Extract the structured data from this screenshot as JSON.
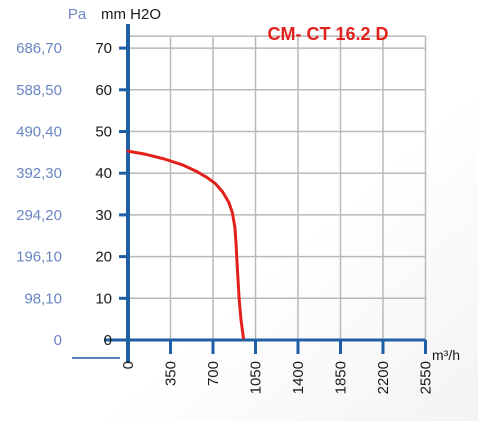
{
  "chart_data": {
    "type": "line",
    "title": "CM- CT 16.2 D",
    "left_axis_unit": "Pa",
    "ylabel": "mm H2O",
    "xlabel": "m³/h",
    "x_ticks": [
      "0",
      "350",
      "700",
      "1050",
      "1400",
      "1850",
      "2200",
      "2550"
    ],
    "y_ticks": [
      "0",
      "10",
      "20",
      "30",
      "40",
      "50",
      "60",
      "70"
    ],
    "pa_ticks": [
      "0",
      "98,10",
      "196,10",
      "294,20",
      "392,30",
      "490,40",
      "588,50",
      "686,70"
    ],
    "ylim": [
      0,
      70
    ],
    "xlim": [
      0,
      2550
    ],
    "grid": true,
    "series": [
      {
        "color": "#e2211c",
        "x": [
          0,
          150,
          300,
          450,
          560,
          650,
          720,
          780,
          830,
          860,
          880,
          890,
          895,
          905,
          915,
          930,
          950
        ],
        "y": [
          45.3,
          44.5,
          43.4,
          42,
          40.5,
          39,
          37.5,
          35.5,
          33,
          30.5,
          27,
          23,
          20,
          15,
          10,
          5,
          0.5
        ]
      }
    ]
  },
  "colors": {
    "axis": "#1e5fa6",
    "pa_text": "#6a86c2",
    "grid": "#b9b9b9",
    "title": "#e2211c",
    "curve": "#e2211c"
  }
}
